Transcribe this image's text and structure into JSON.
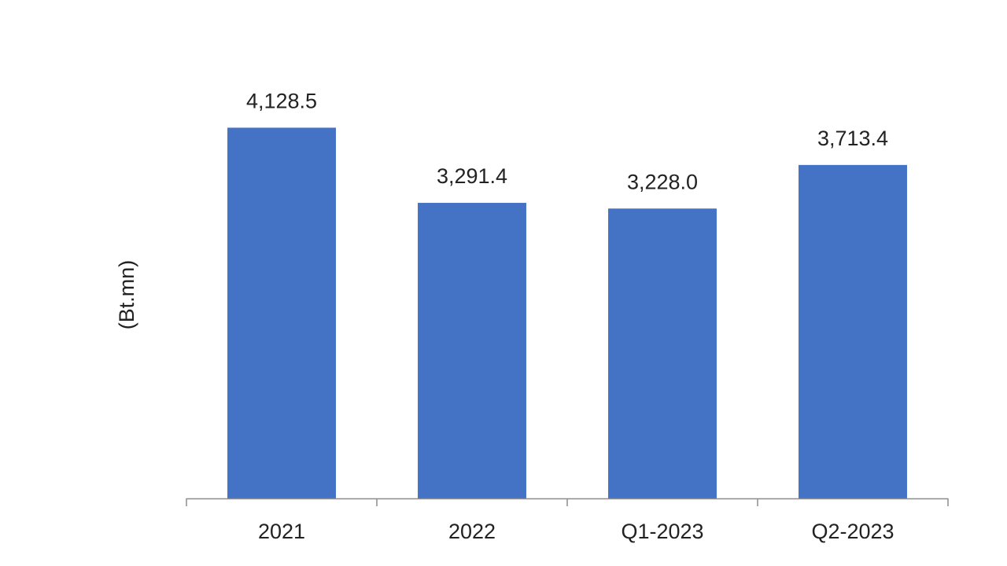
{
  "chart_data": {
    "type": "bar",
    "y_label": "(Bt.mn)",
    "categories": [
      "2021",
      "2022",
      "Q1-2023",
      "Q2-2023"
    ],
    "values": [
      4128.5,
      3291.4,
      3228.0,
      3713.4
    ],
    "value_labels": [
      "4,128.5",
      "3,291.4",
      "3,228.0",
      "3,713.4"
    ],
    "color": "#4472c4",
    "ylim": [
      0,
      4500
    ]
  }
}
